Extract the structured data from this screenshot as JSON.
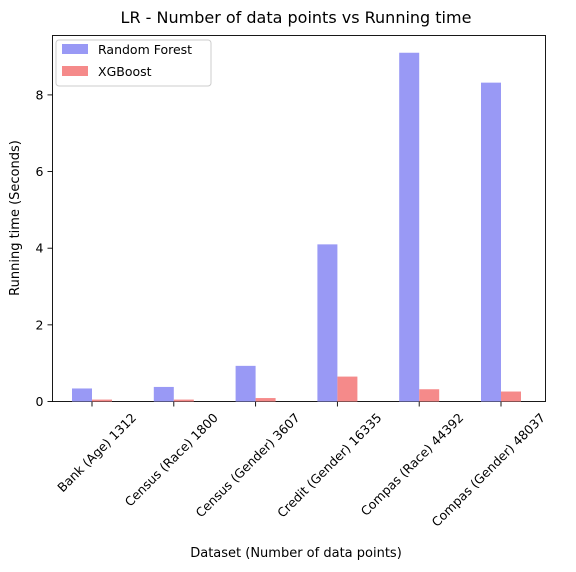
{
  "chart_data": {
    "type": "bar",
    "title": "LR - Number of data points vs Running time",
    "xlabel": "Dataset (Number of data points)",
    "ylabel": "Running time (Seconds)",
    "categories": [
      "Bank (Age) 1312",
      "Census (Race) 1800",
      "Census (Gender) 3607",
      "Credit (Gender) 16335",
      "Compas (Race) 44392",
      "Compas (Gender) 48037"
    ],
    "series": [
      {
        "name": "Random Forest",
        "color": "#9999f5",
        "values": [
          0.34,
          0.38,
          0.93,
          4.1,
          9.1,
          8.32
        ]
      },
      {
        "name": "XGBoost",
        "color": "#f58a8a",
        "values": [
          0.05,
          0.05,
          0.09,
          0.65,
          0.32,
          0.26
        ]
      }
    ],
    "ylim": [
      0,
      9.55
    ],
    "yticks": [
      0,
      2,
      4,
      6,
      8
    ],
    "legend": "top-left",
    "grid": false
  }
}
